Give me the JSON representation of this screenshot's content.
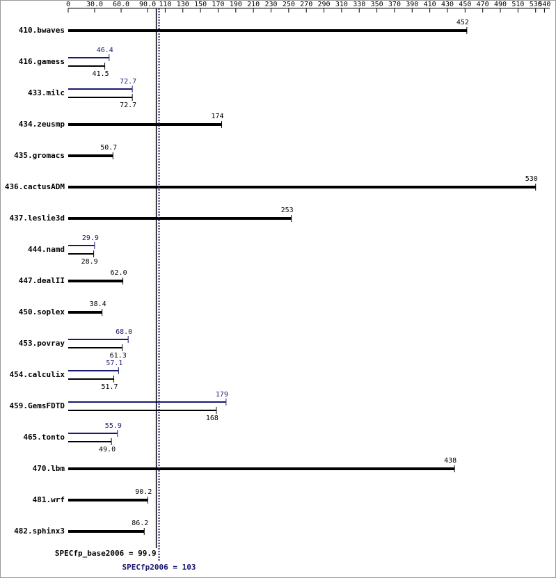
{
  "chart_data": {
    "type": "bar",
    "orientation": "horizontal",
    "categories": [
      "410.bwaves",
      "416.gamess",
      "433.milc",
      "434.zeusmp",
      "435.gromacs",
      "436.cactusADM",
      "437.leslie3d",
      "444.namd",
      "447.dealII",
      "450.soplex",
      "453.povray",
      "454.calculix",
      "459.GemsFDTD",
      "465.tonto",
      "470.lbm",
      "481.wrf",
      "482.sphinx3"
    ],
    "series": [
      {
        "color": "#000000",
        "values": [
          452,
          41.5,
          72.7,
          174,
          50.7,
          530,
          253,
          28.9,
          62.0,
          38.4,
          61.3,
          51.7,
          168,
          49.0,
          438,
          90.2,
          86.2
        ],
        "value_labels": [
          "452",
          "41.5",
          "72.7",
          "174",
          "50.7",
          "530",
          "253",
          "28.9",
          "62.0",
          "38.4",
          "61.3",
          "51.7",
          "168",
          "49.0",
          "438",
          "90.2",
          "86.2"
        ]
      },
      {
        "color": "#191970",
        "values": [
          null,
          46.4,
          72.7,
          null,
          null,
          null,
          null,
          29.9,
          null,
          null,
          68.0,
          57.1,
          179,
          55.9,
          null,
          null,
          null
        ],
        "value_labels": [
          null,
          "46.4",
          "72.7",
          null,
          null,
          null,
          null,
          "29.9",
          null,
          null,
          "68.0",
          "57.1",
          "179",
          "55.9",
          null,
          null,
          null
        ]
      }
    ],
    "xlim": [
      0,
      546
    ],
    "xticks": [
      0,
      {
        "value": 30,
        "label": "30.0"
      },
      {
        "value": 60,
        "label": "60.0"
      },
      {
        "value": 90,
        "label": "90.0"
      },
      110,
      130,
      150,
      170,
      190,
      210,
      230,
      250,
      270,
      290,
      310,
      330,
      350,
      370,
      390,
      410,
      430,
      450,
      470,
      490,
      510,
      530,
      540
    ],
    "reference_lines": [
      {
        "value": 99.9,
        "label": "SPECfp_base2006 = 99.9",
        "color": "#000000",
        "style": "solid"
      },
      {
        "value": 103,
        "label": "SPECfp2006 = 103",
        "color": "#191970",
        "style": "dotted"
      }
    ]
  }
}
